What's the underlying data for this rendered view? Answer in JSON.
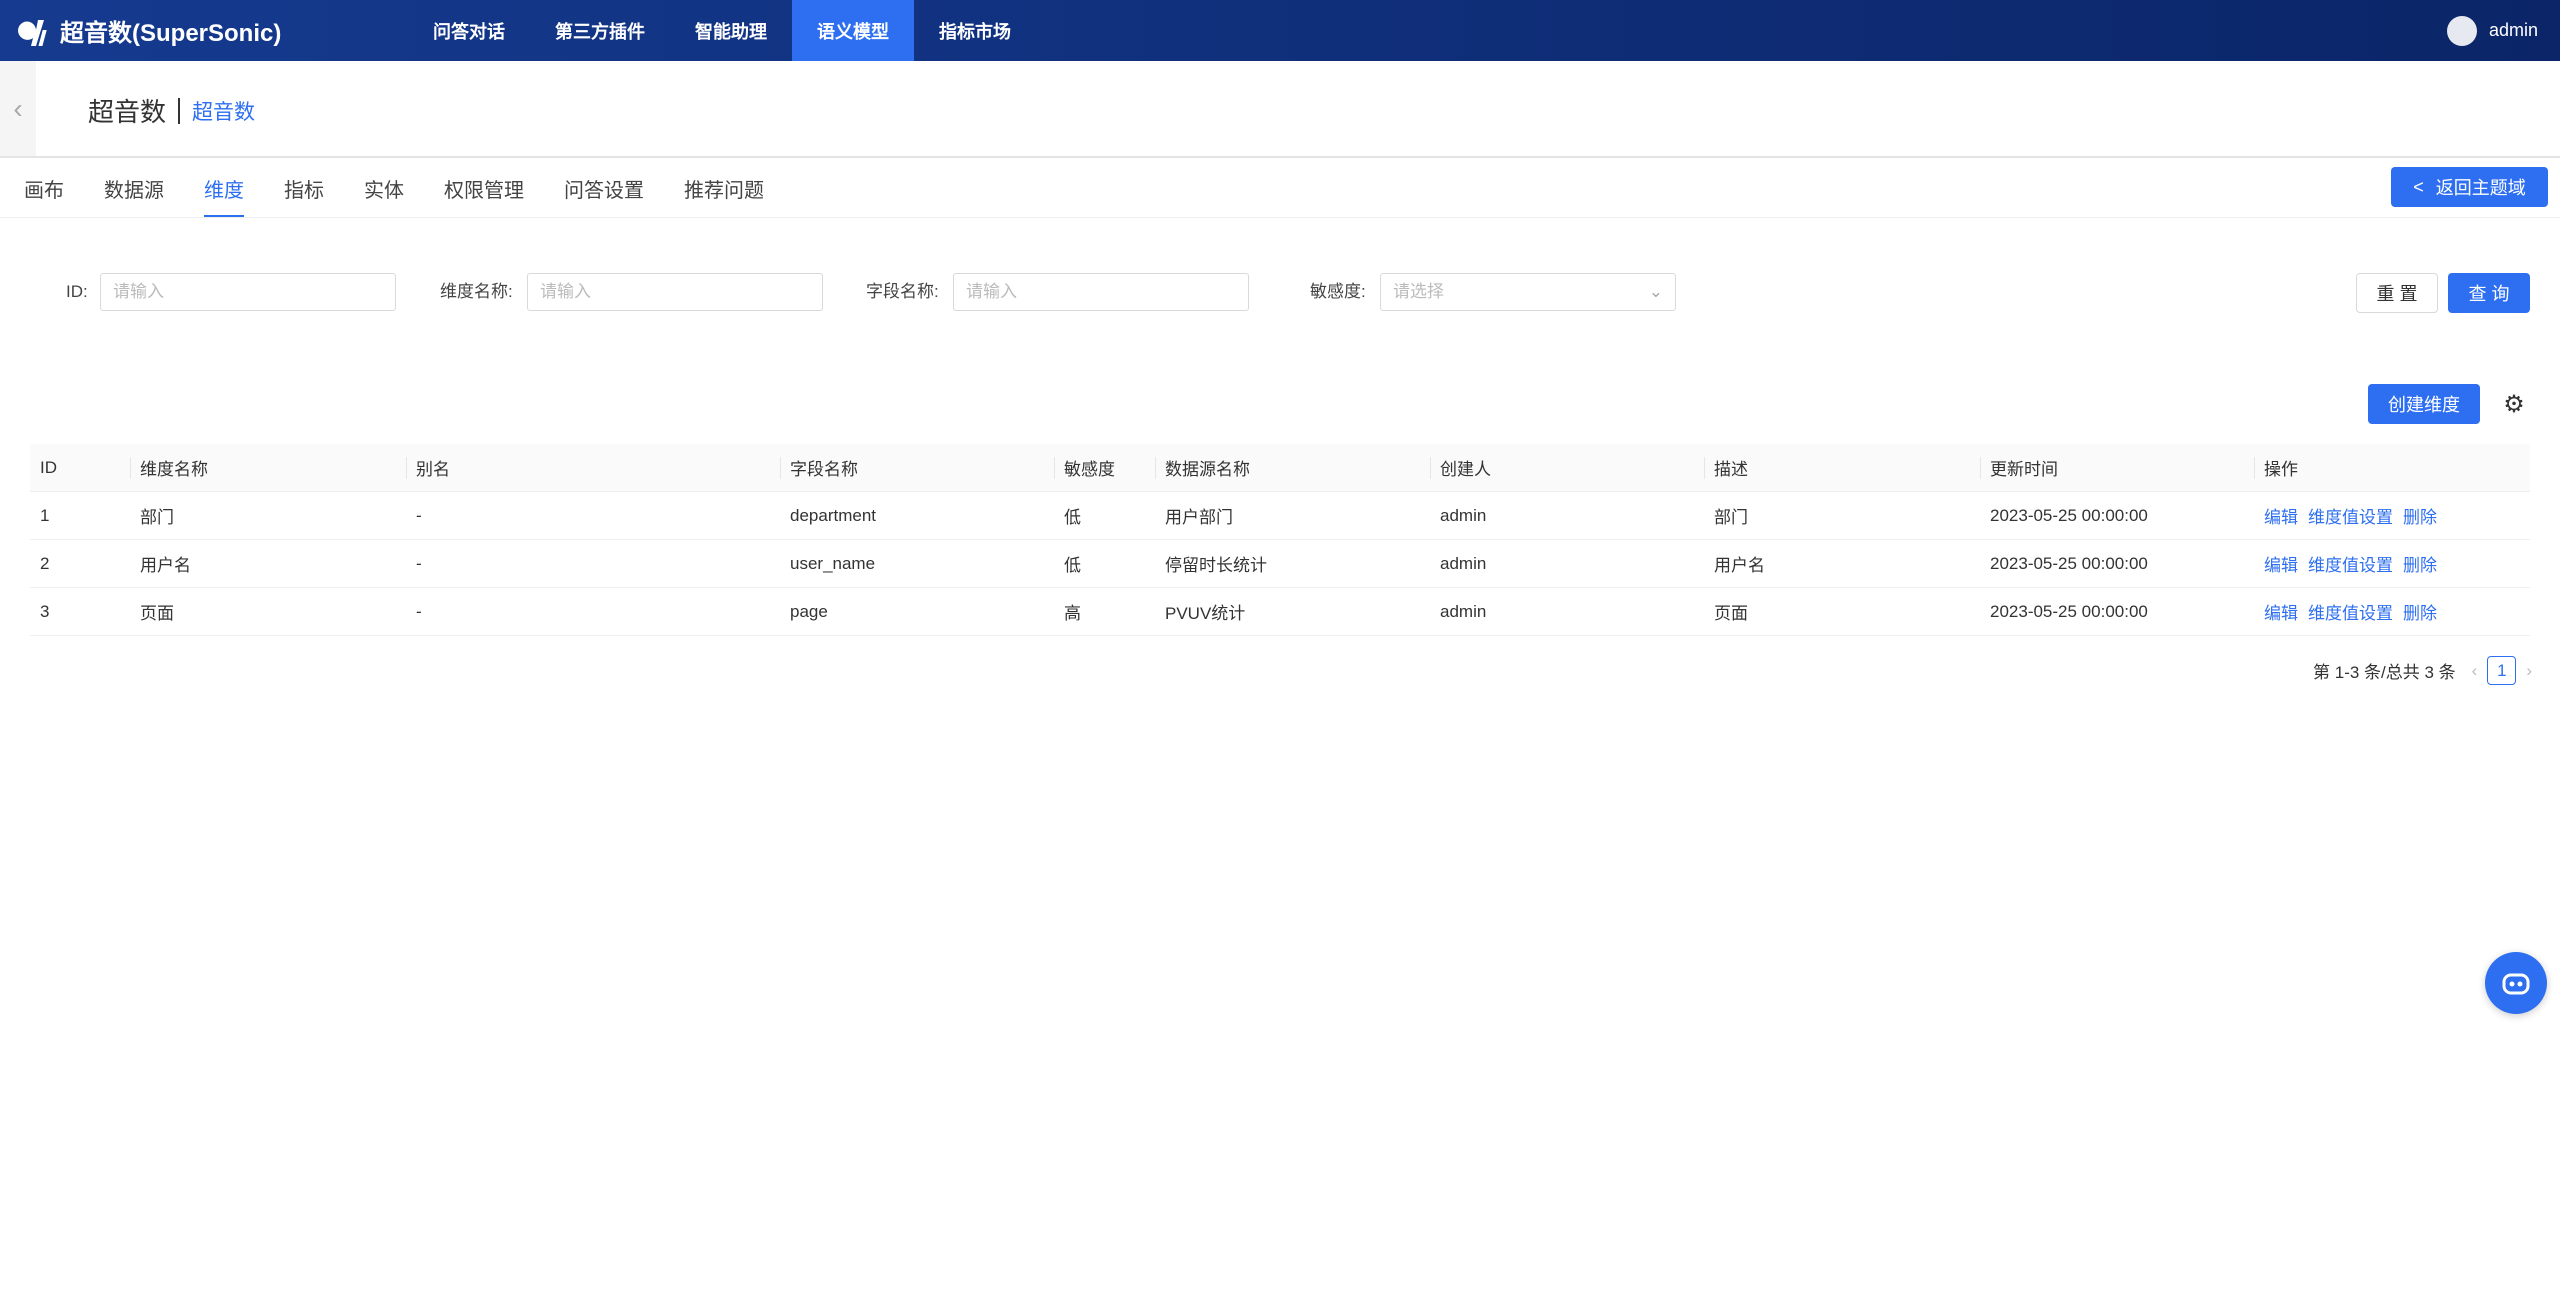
{
  "app": {
    "title": "超音数(SuperSonic)",
    "user": "admin"
  },
  "nav": [
    {
      "label": "问答对话"
    },
    {
      "label": "第三方插件"
    },
    {
      "label": "智能助理"
    },
    {
      "label": "语义模型",
      "active": true
    },
    {
      "label": "指标市场"
    }
  ],
  "breadcrumb": {
    "domain": "超音数",
    "model": "超音数"
  },
  "tabs": [
    {
      "label": "画布"
    },
    {
      "label": "数据源"
    },
    {
      "label": "维度",
      "active": true
    },
    {
      "label": "指标"
    },
    {
      "label": "实体"
    },
    {
      "label": "权限管理"
    },
    {
      "label": "问答设置"
    },
    {
      "label": "推荐问题"
    }
  ],
  "back_button": "返回主题域",
  "filters": {
    "id_label": "ID:",
    "id_placeholder": "请输入",
    "name_label": "维度名称:",
    "name_placeholder": "请输入",
    "field_label": "字段名称:",
    "field_placeholder": "请输入",
    "sensitivity_label": "敏感度:",
    "sensitivity_placeholder": "请选择",
    "reset": "重 置",
    "query": "查 询"
  },
  "create_button": "创建维度",
  "table": {
    "columns": [
      "ID",
      "维度名称",
      "别名",
      "字段名称",
      "敏感度",
      "数据源名称",
      "创建人",
      "描述",
      "更新时间",
      "操作"
    ],
    "rows": [
      [
        "1",
        "部门",
        "-",
        "department",
        "低",
        "用户部门",
        "admin",
        "部门",
        "2023-05-25 00:00:00"
      ],
      [
        "2",
        "用户名",
        "-",
        "user_name",
        "低",
        "停留时长统计",
        "admin",
        "用户名",
        "2023-05-25 00:00:00"
      ],
      [
        "3",
        "页面",
        "-",
        "page",
        "高",
        "PVUV统计",
        "admin",
        "页面",
        "2023-05-25 00:00:00"
      ]
    ],
    "actions": [
      "编辑",
      "维度值设置",
      "删除"
    ]
  },
  "pagination": {
    "summary": "第 1-3 条/总共 3 条",
    "current": "1"
  },
  "colors": {
    "primary": "#2d6ff0",
    "header": "#153a8f"
  }
}
